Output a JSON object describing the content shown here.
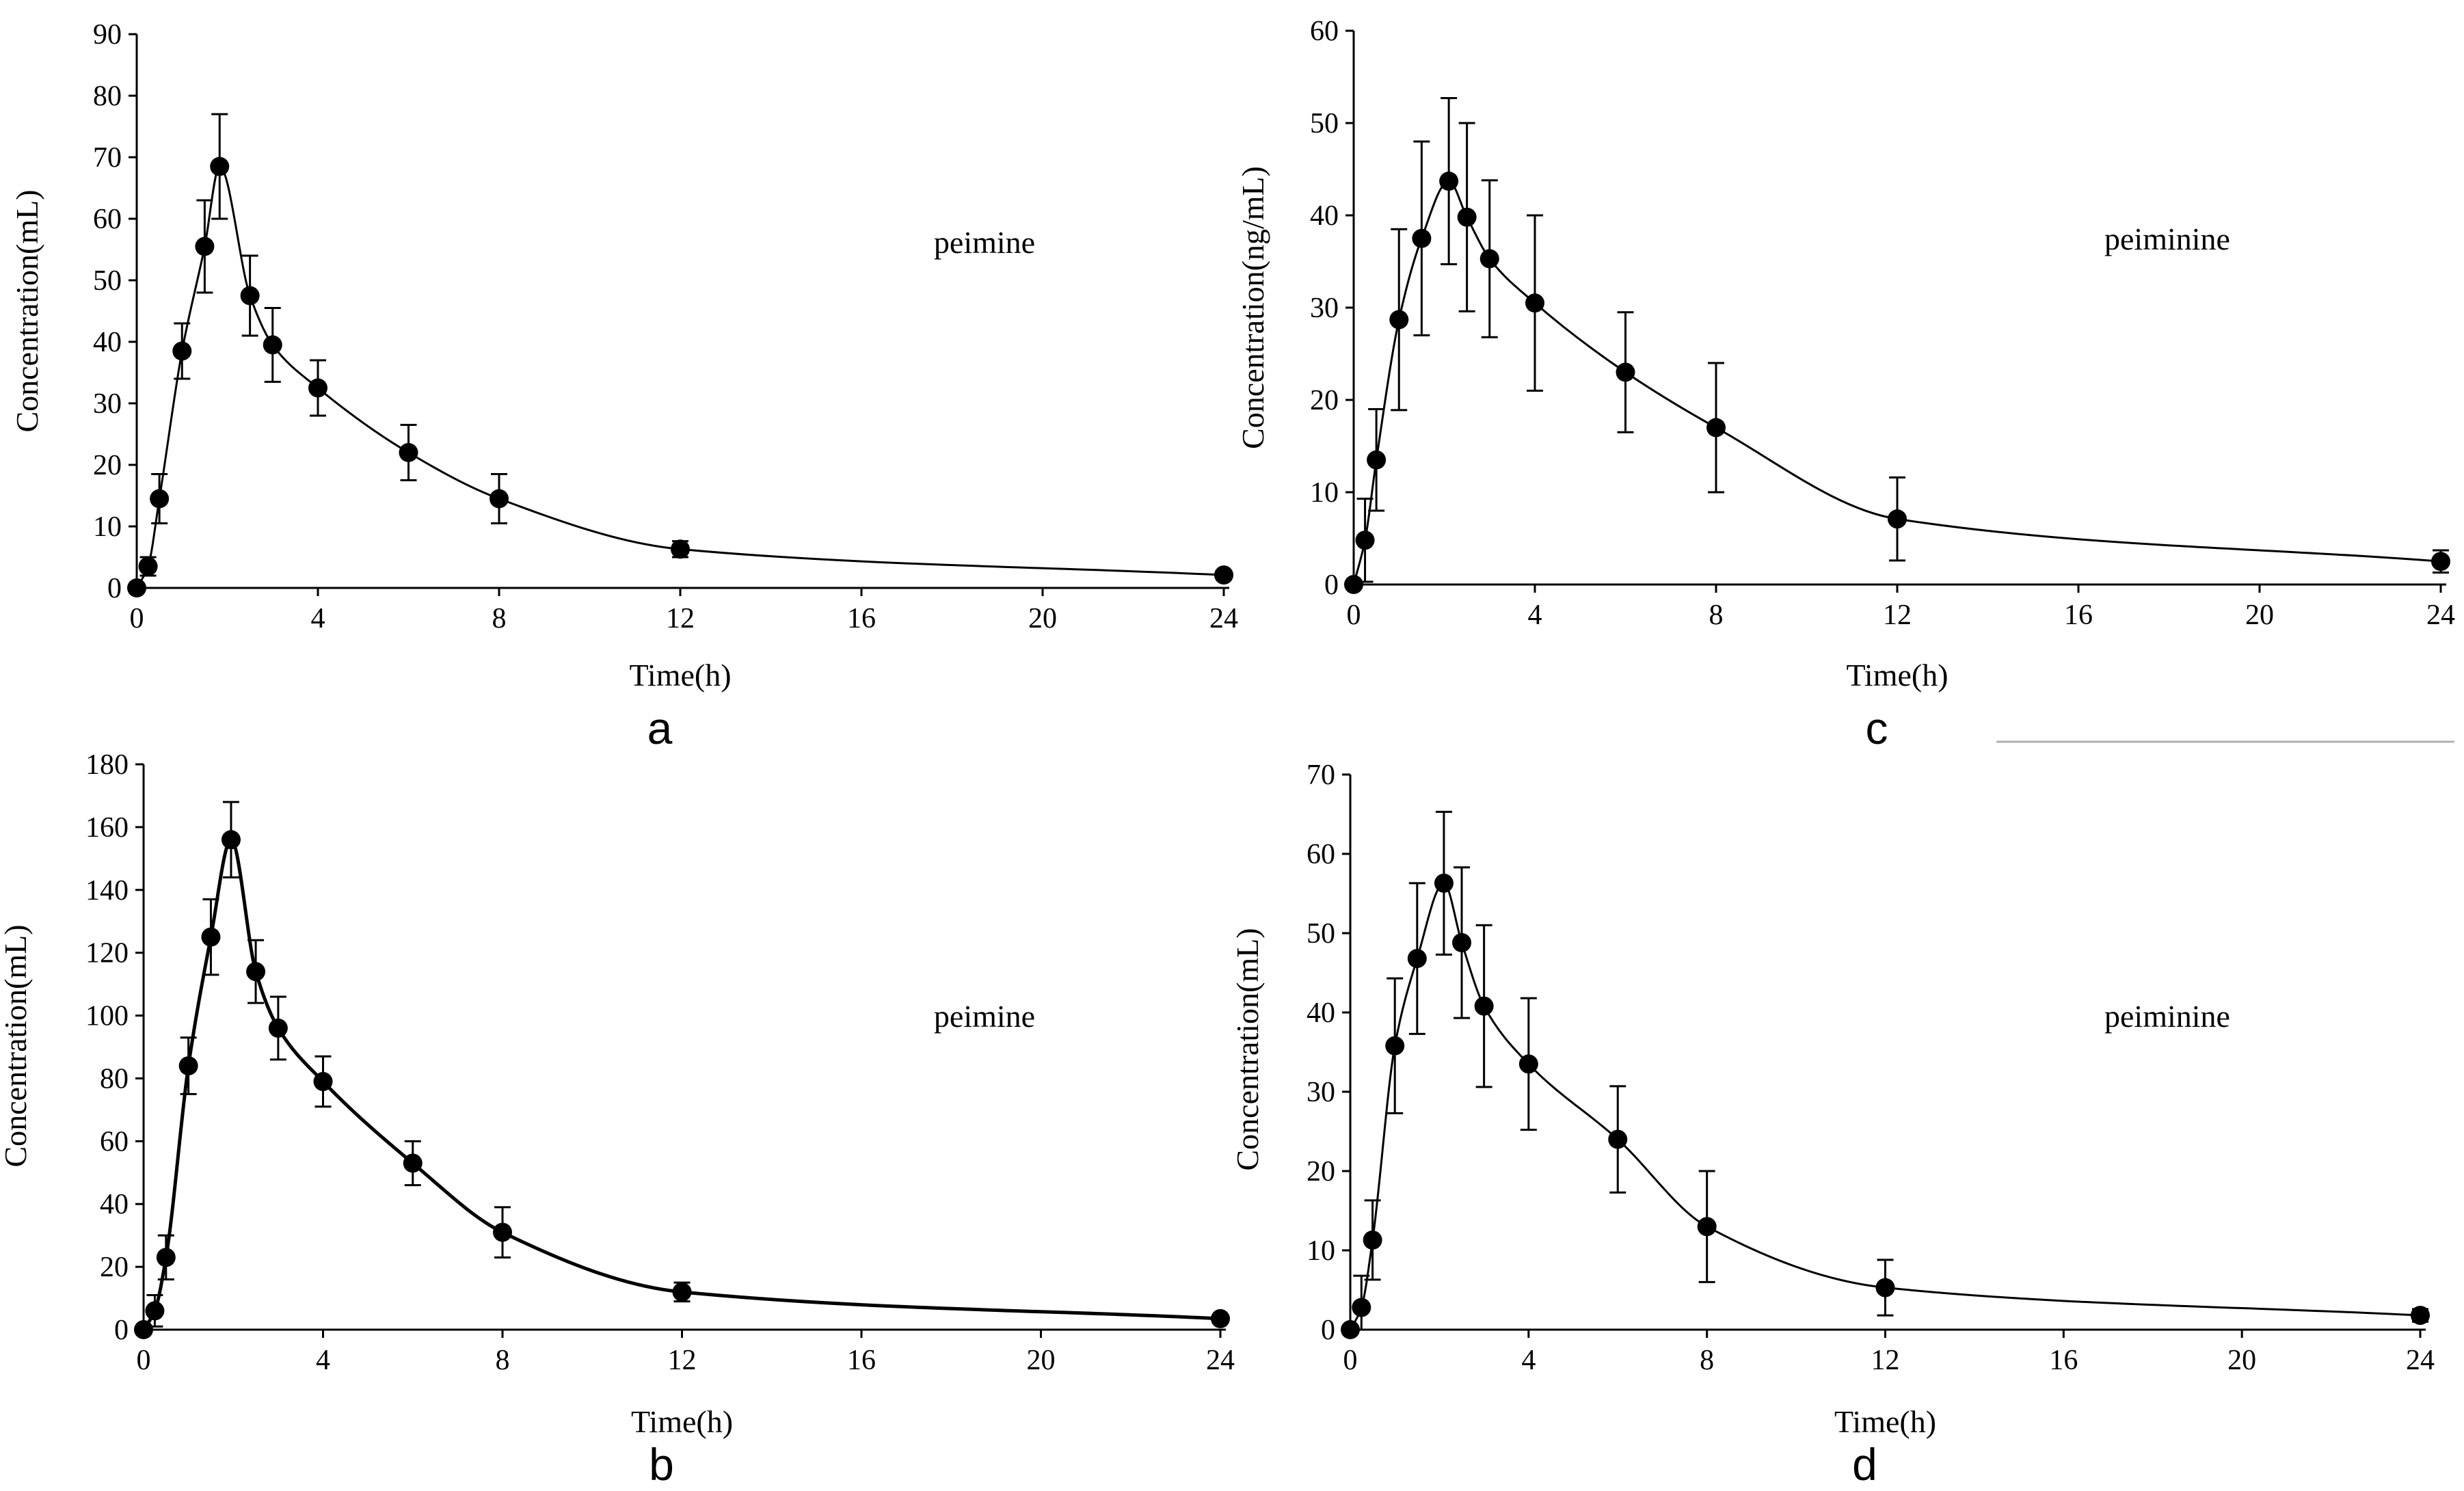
{
  "colors": {
    "ink": "#000000",
    "background": "#ffffff",
    "separator": "#b0b0b0"
  },
  "chart_data": [
    {
      "type": "line",
      "panel_label": "a",
      "annotation": "peimine",
      "xlabel": "Time(h)",
      "ylabel": "Concentration(mL)",
      "xlim": [
        0,
        24
      ],
      "ylim": [
        0,
        90
      ],
      "xticks": [
        0,
        4,
        8,
        12,
        16,
        20,
        24
      ],
      "yticks": [
        0,
        10,
        20,
        30,
        40,
        50,
        60,
        70,
        80,
        90
      ],
      "grid": false,
      "series": [
        {
          "name": "peimine",
          "x": [
            0,
            0.25,
            0.5,
            1,
            1.5,
            1.83,
            2.5,
            3,
            4,
            6,
            8,
            12,
            24
          ],
          "y": [
            0,
            3.5,
            14.5,
            38.5,
            55.5,
            68.5,
            47.5,
            39.5,
            32.5,
            22,
            14.5,
            6.3,
            2.1
          ],
          "err": [
            0,
            1.5,
            4,
            4.5,
            7.5,
            8.5,
            6.5,
            6,
            4.5,
            4.5,
            4,
            1.3,
            0.5
          ]
        }
      ]
    },
    {
      "type": "line",
      "panel_label": "c",
      "annotation": "peiminine",
      "xlabel": "Time(h)",
      "ylabel": "Concentration(ng/mL)",
      "xlim": [
        0,
        24
      ],
      "ylim": [
        0,
        60
      ],
      "xticks": [
        0,
        4,
        8,
        12,
        16,
        20,
        24
      ],
      "yticks": [
        0,
        10,
        20,
        30,
        40,
        50,
        60
      ],
      "grid": false,
      "series": [
        {
          "name": "peiminine",
          "x": [
            0,
            0.25,
            0.5,
            1,
            1.5,
            2.1,
            2.5,
            3,
            4,
            6,
            8,
            12,
            24
          ],
          "y": [
            0,
            4.8,
            13.5,
            28.7,
            37.5,
            43.7,
            39.8,
            35.3,
            30.5,
            23,
            17,
            7.1,
            2.5
          ],
          "err": [
            0,
            4.5,
            5.5,
            9.8,
            10.5,
            9,
            10.2,
            8.5,
            9.5,
            6.5,
            7,
            4.5,
            1.2
          ]
        }
      ]
    },
    {
      "type": "line",
      "panel_label": "b",
      "annotation": "peimine",
      "xlabel": "Time(h)",
      "ylabel": "Concentration(mL)",
      "xlim": [
        0,
        24
      ],
      "ylim": [
        0,
        180
      ],
      "xticks": [
        0,
        4,
        8,
        12,
        16,
        20,
        24
      ],
      "yticks": [
        0,
        20,
        40,
        60,
        80,
        100,
        120,
        140,
        160,
        180
      ],
      "grid": false,
      "series": [
        {
          "name": "peimine",
          "x": [
            0,
            0.25,
            0.5,
            1,
            1.5,
            1.95,
            2.5,
            3,
            4,
            6,
            8,
            12,
            24
          ],
          "y": [
            0,
            6,
            23,
            84,
            125,
            156,
            114,
            96,
            79,
            53,
            31,
            12,
            3.5
          ],
          "err": [
            0,
            5,
            7,
            9,
            12,
            12,
            10,
            10,
            8,
            7,
            8,
            3,
            1
          ]
        }
      ]
    },
    {
      "type": "line",
      "panel_label": "d",
      "annotation": "peiminine",
      "xlabel": "Time(h)",
      "ylabel": "Concentration(mL)",
      "xlim": [
        0,
        24
      ],
      "ylim": [
        0,
        70
      ],
      "xticks": [
        0,
        4,
        8,
        12,
        16,
        20,
        24
      ],
      "yticks": [
        0,
        10,
        20,
        30,
        40,
        50,
        60,
        70
      ],
      "grid": false,
      "series": [
        {
          "name": "peiminine",
          "x": [
            0,
            0.25,
            0.5,
            1,
            1.5,
            2.1,
            2.5,
            3,
            4,
            6,
            8,
            12,
            24
          ],
          "y": [
            0,
            2.8,
            11.3,
            35.8,
            46.8,
            56.3,
            48.8,
            40.8,
            33.5,
            24,
            13,
            5.3,
            1.8
          ],
          "err": [
            0,
            4,
            5,
            8.5,
            9.5,
            9,
            9.5,
            10.2,
            8.3,
            6.7,
            7,
            3.5,
            0.8
          ]
        }
      ]
    }
  ]
}
